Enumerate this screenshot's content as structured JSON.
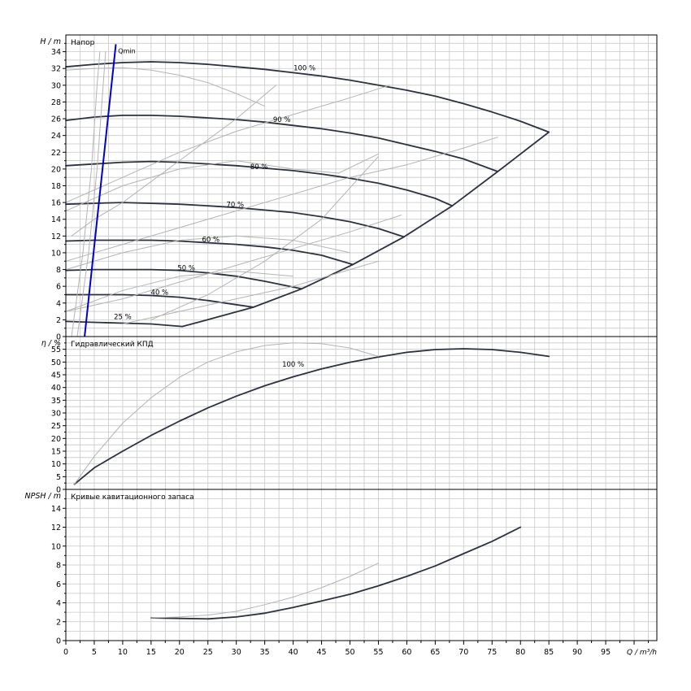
{
  "chart_data": [
    {
      "type": "line",
      "ylabel": "H / m",
      "label": "Напор",
      "ylim": [
        0,
        36
      ],
      "yticks": [
        0,
        2,
        4,
        6,
        8,
        10,
        12,
        14,
        16,
        18,
        20,
        22,
        24,
        26,
        28,
        30,
        32,
        34
      ],
      "xlim": [
        0,
        104
      ],
      "grid": true,
      "series": [
        {
          "name": "100 %",
          "weight": "main",
          "x": [
            0,
            5,
            10,
            15,
            20,
            25,
            30,
            35,
            40,
            45,
            50,
            55,
            60,
            65,
            70,
            75,
            80,
            85
          ],
          "y": [
            32.2,
            32.5,
            32.7,
            32.8,
            32.7,
            32.5,
            32.2,
            31.9,
            31.5,
            31.1,
            30.6,
            30.0,
            29.4,
            28.7,
            27.8,
            26.8,
            25.7,
            24.4
          ]
        },
        {
          "name": "90 %",
          "weight": "main",
          "x": [
            0,
            5,
            10,
            15,
            20,
            25,
            30,
            35,
            40,
            45,
            50,
            55,
            60,
            65,
            70,
            76
          ],
          "y": [
            25.8,
            26.2,
            26.4,
            26.4,
            26.3,
            26.1,
            25.9,
            25.6,
            25.2,
            24.8,
            24.3,
            23.7,
            22.9,
            22.1,
            21.2,
            19.7
          ]
        },
        {
          "name": "80 %",
          "weight": "main",
          "x": [
            0,
            5,
            10,
            15,
            20,
            25,
            30,
            35,
            40,
            45,
            50,
            55,
            60,
            65,
            68
          ],
          "y": [
            20.4,
            20.6,
            20.8,
            20.9,
            20.8,
            20.6,
            20.4,
            20.1,
            19.8,
            19.4,
            18.9,
            18.3,
            17.5,
            16.5,
            15.6
          ]
        },
        {
          "name": "70 %",
          "weight": "main",
          "x": [
            0,
            5,
            10,
            15,
            20,
            25,
            30,
            35,
            40,
            45,
            50,
            55,
            59.5
          ],
          "y": [
            15.8,
            15.9,
            16.0,
            15.9,
            15.8,
            15.6,
            15.4,
            15.1,
            14.8,
            14.3,
            13.7,
            12.9,
            11.9
          ]
        },
        {
          "name": "60 %",
          "weight": "main",
          "x": [
            0,
            5,
            10,
            15,
            20,
            25,
            30,
            35,
            40,
            45,
            50.5
          ],
          "y": [
            11.4,
            11.5,
            11.5,
            11.5,
            11.4,
            11.2,
            11.0,
            10.7,
            10.3,
            9.7,
            8.6
          ]
        },
        {
          "name": "50 %",
          "weight": "main",
          "x": [
            0,
            5,
            10,
            15,
            20,
            25,
            30,
            35,
            41.5
          ],
          "y": [
            7.9,
            8.0,
            8.0,
            8.0,
            7.9,
            7.6,
            7.2,
            6.6,
            5.7
          ]
        },
        {
          "name": "40 %",
          "weight": "main",
          "x": [
            0,
            5,
            10,
            15,
            20,
            25,
            30,
            33
          ],
          "y": [
            5.0,
            5.0,
            5.0,
            4.9,
            4.7,
            4.3,
            3.8,
            3.5
          ]
        },
        {
          "name": "25 %",
          "weight": "main",
          "x": [
            0,
            5,
            10,
            15,
            20.5
          ],
          "y": [
            1.8,
            1.7,
            1.6,
            1.5,
            1.2
          ]
        },
        {
          "name": "",
          "weight": "main",
          "x": [
            20.5,
            26,
            33,
            41.5,
            50.5,
            59.5,
            68,
            76,
            85
          ],
          "y": [
            1.2,
            2.2,
            3.5,
            5.7,
            8.6,
            11.9,
            15.6,
            19.7,
            24.4
          ]
        },
        {
          "name": "",
          "weight": "light",
          "x": [
            0,
            5,
            10,
            15,
            20,
            25,
            30,
            35
          ],
          "y": [
            31.8,
            32.0,
            32.1,
            31.8,
            31.2,
            30.3,
            29.0,
            27.5
          ]
        },
        {
          "name": "",
          "weight": "light",
          "x": [
            1,
            5,
            10,
            15,
            20,
            25,
            30,
            37
          ],
          "y": [
            12,
            14,
            16,
            18.5,
            21,
            23.5,
            26,
            30
          ]
        },
        {
          "name": "",
          "weight": "light",
          "x": [
            15,
            25,
            35,
            45,
            55
          ],
          "y": [
            2,
            5,
            9,
            14,
            21.5
          ]
        },
        {
          "name": "",
          "weight": "light",
          "x": [
            0,
            10,
            20,
            30,
            40,
            50,
            57
          ],
          "y": [
            16,
            19,
            22,
            24.5,
            26.5,
            28.5,
            30
          ]
        },
        {
          "name": "",
          "weight": "light",
          "x": [
            0,
            10,
            20,
            30,
            40,
            50,
            60,
            70,
            76
          ],
          "y": [
            9,
            11,
            13,
            15,
            17,
            19,
            20.5,
            22.5,
            23.8
          ]
        },
        {
          "name": "",
          "weight": "light",
          "x": [
            0,
            10,
            20,
            30,
            40,
            50,
            59
          ],
          "y": [
            3,
            4.5,
            6.5,
            8.5,
            10.5,
            12.5,
            14.5
          ]
        },
        {
          "name": "",
          "weight": "light",
          "x": [
            10,
            20,
            30,
            40,
            50,
            55
          ],
          "y": [
            1.5,
            3,
            4.5,
            6,
            8,
            9
          ]
        },
        {
          "name": "",
          "weight": "light",
          "x": [
            0,
            10,
            20,
            30,
            40,
            48,
            55
          ],
          "y": [
            15,
            18,
            20,
            21,
            20,
            19.5,
            21.8
          ]
        },
        {
          "name": "",
          "weight": "light",
          "x": [
            0,
            10,
            20,
            30,
            40,
            50
          ],
          "y": [
            8,
            10,
            11.5,
            12,
            11.5,
            10
          ]
        },
        {
          "name": "",
          "weight": "light",
          "x": [
            0,
            10,
            20,
            30,
            40
          ],
          "y": [
            3,
            5.5,
            7.2,
            7.8,
            7.2
          ]
        },
        {
          "name": "",
          "weight": "light",
          "x": [
            1,
            3,
            4.5,
            5.5,
            6
          ],
          "y": [
            0,
            10,
            20,
            30,
            34
          ]
        },
        {
          "name": "",
          "weight": "light",
          "x": [
            2,
            4,
            5.5,
            7
          ],
          "y": [
            0,
            10,
            20,
            34
          ]
        }
      ],
      "annotations": [
        {
          "text": "100 %",
          "x": 42,
          "y": 31.8
        },
        {
          "text": "90 %",
          "x": 38,
          "y": 25.6
        },
        {
          "text": "80 %",
          "x": 34,
          "y": 20.0
        },
        {
          "text": "70 %",
          "x": 29.8,
          "y": 15.5
        },
        {
          "text": "60 %",
          "x": 25.5,
          "y": 11.3
        },
        {
          "text": "50 %",
          "x": 21.2,
          "y": 7.9
        },
        {
          "text": "40 %",
          "x": 16.5,
          "y": 5.0
        },
        {
          "text": "25 %",
          "x": 10,
          "y": 2.1
        }
      ],
      "qmin": {
        "label": "Qmin",
        "x": [
          3.3,
          8.8
        ],
        "y": [
          0,
          34.9
        ],
        "label_x": 9.2,
        "label_y": 33.8,
        "color": "#0000cc"
      }
    },
    {
      "type": "line",
      "ylabel": "η / %",
      "label": "Гидравлический КПД",
      "ylim": [
        0,
        60
      ],
      "yticks": [
        0,
        5,
        10,
        15,
        20,
        25,
        30,
        35,
        40,
        45,
        50,
        55
      ],
      "xlim": [
        0,
        104
      ],
      "grid": true,
      "series": [
        {
          "name": "100 %",
          "weight": "main",
          "x": [
            1.5,
            5,
            10,
            15,
            20,
            25,
            30,
            35,
            40,
            45,
            50,
            55,
            60,
            65,
            70,
            75,
            80,
            85
          ],
          "y": [
            2,
            8.5,
            15,
            21.2,
            26.8,
            32.0,
            36.6,
            40.7,
            44.2,
            47.3,
            49.9,
            52.0,
            53.8,
            54.9,
            55.2,
            54.9,
            53.8,
            52.2
          ]
        },
        {
          "name": "",
          "weight": "light",
          "x": [
            1.5,
            5,
            10,
            15,
            20,
            25,
            30,
            35,
            40,
            45,
            50,
            55
          ],
          "y": [
            2,
            13,
            26,
            36,
            44,
            50,
            54,
            56.5,
            57.5,
            57.2,
            55.5,
            52.2
          ]
        }
      ],
      "annotations": [
        {
          "text": "100 %",
          "x": 40,
          "y": 48.2
        }
      ]
    },
    {
      "type": "line",
      "ylabel": "NPSH / m",
      "label": "Кривые кавитационного запаса",
      "ylim": [
        0,
        16
      ],
      "yticks": [
        0,
        2,
        4,
        6,
        8,
        10,
        12,
        14
      ],
      "xlim": [
        0,
        104
      ],
      "xticks": [
        0,
        5,
        10,
        15,
        20,
        25,
        30,
        35,
        40,
        45,
        50,
        55,
        60,
        65,
        70,
        75,
        80,
        85,
        90,
        95
      ],
      "xlabel": "Q / m³/h",
      "grid": true,
      "series": [
        {
          "name": "",
          "weight": "main",
          "x": [
            15,
            20,
            25,
            30,
            35,
            40,
            45,
            50,
            55,
            60,
            65,
            70,
            75,
            80
          ],
          "y": [
            2.4,
            2.35,
            2.3,
            2.5,
            2.9,
            3.5,
            4.2,
            4.9,
            5.8,
            6.8,
            7.9,
            9.2,
            10.5,
            12.0
          ]
        },
        {
          "name": "",
          "weight": "light",
          "x": [
            15,
            20,
            25,
            30,
            35,
            40,
            45,
            50,
            55
          ],
          "y": [
            2.4,
            2.5,
            2.7,
            3.1,
            3.8,
            4.6,
            5.6,
            6.8,
            8.2
          ]
        }
      ]
    }
  ]
}
